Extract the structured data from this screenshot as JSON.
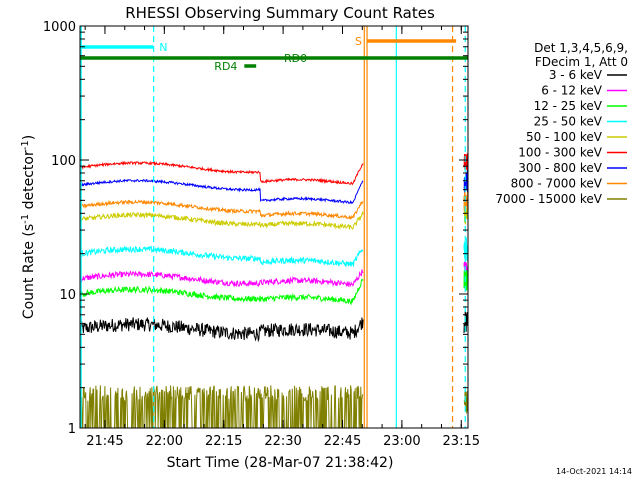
{
  "chart_data": {
    "type": "line",
    "title": "RHESSI Observing Summary Count Rates",
    "xlabel": "Start Time (28-Mar-07 21:38:42)",
    "ylabel_main": "Count Rate (s",
    "ylabel_sup1": "-1",
    "ylabel_mid": " detector",
    "ylabel_sup2": "-1",
    "ylabel_end": ")",
    "ylog": true,
    "ylim": [
      1,
      1000
    ],
    "xlim_minutes": [
      0,
      98
    ],
    "yticks": [
      {
        "value": 1,
        "label": "1"
      },
      {
        "value": 10,
        "label": "10"
      },
      {
        "value": 100,
        "label": "100"
      },
      {
        "value": 1000,
        "label": "1000"
      }
    ],
    "xticks": [
      {
        "t": 6.3,
        "label": "21:45"
      },
      {
        "t": 21.3,
        "label": "22:00"
      },
      {
        "t": 36.3,
        "label": "22:15"
      },
      {
        "t": 51.3,
        "label": "22:30"
      },
      {
        "t": 66.3,
        "label": "22:45"
      },
      {
        "t": 81.3,
        "label": "23:00"
      },
      {
        "t": 96.3,
        "label": "23:15"
      }
    ],
    "legend_header": [
      "Det 1,3,4,5,6,9,",
      "FDecim 1, Att 0"
    ],
    "legend_position": "right",
    "series": [
      {
        "name": "3 - 6 keV",
        "color": "#000000",
        "base": 5.5,
        "noise": 0.12,
        "seg2": 5.2,
        "end": 6.3
      },
      {
        "name": "6 - 12 keV",
        "color": "#ff00ff",
        "base": 13,
        "noise": 0.05,
        "seg2": 12,
        "end": 15
      },
      {
        "name": "12 - 25 keV",
        "color": "#00ff00",
        "base": 10,
        "noise": 0.05,
        "seg2": 9,
        "end": 13
      },
      {
        "name": "25 - 50 keV",
        "color": "#00ffff",
        "base": 20,
        "noise": 0.05,
        "seg2": 17,
        "end": 22
      },
      {
        "name": "50 - 100 keV",
        "color": "#cccc00",
        "base": 36,
        "noise": 0.04,
        "seg2": 32,
        "end": 40
      },
      {
        "name": "100 - 300 keV",
        "color": "#ff0000",
        "base": 88,
        "noise": 0.02,
        "seg2": 68,
        "end": 95
      },
      {
        "name": "300 - 800 keV",
        "color": "#0000ff",
        "base": 65,
        "noise": 0.02,
        "seg2": 49,
        "end": 70
      },
      {
        "name": "800 - 7000 keV",
        "color": "#ff8800",
        "base": 45,
        "noise": 0.03,
        "seg2": 38,
        "end": 50
      },
      {
        "name": "7000 - 15000 keV",
        "color": "#808000",
        "base": 1.6,
        "noise": 0.3,
        "seg2": 1.6,
        "end": 1.6
      }
    ],
    "gap_minutes": [
      71.5,
      97.0
    ],
    "data_end": 98,
    "step_at": 45.5,
    "flags": [
      {
        "label": "N",
        "color": "#00ffff",
        "start": 0,
        "end": 18.5,
        "y": 47
      },
      {
        "label": "S",
        "color": "#ff8800",
        "start": 72.5,
        "end": 95,
        "y": 41
      },
      {
        "label": "RD0",
        "color": "#008000",
        "start": 0,
        "end": 98,
        "y": 58
      },
      {
        "label": "RD4",
        "color": "#008000",
        "start": 41.5,
        "end": 44.5,
        "y": 66
      }
    ],
    "vlines": [
      {
        "t": 0.3,
        "color": "#00ffff",
        "style": "solid"
      },
      {
        "t": 18.6,
        "color": "#00ffff",
        "style": "dashed"
      },
      {
        "t": 71.8,
        "color": "#ff8800",
        "style": "solid"
      },
      {
        "t": 72.5,
        "color": "#ff8800",
        "style": "solid"
      },
      {
        "t": 79.9,
        "color": "#00ffff",
        "style": "solid"
      },
      {
        "t": 94.1,
        "color": "#ff8800",
        "style": "dashed"
      },
      {
        "t": 97.3,
        "color": "#00ffff",
        "style": "dashed"
      }
    ],
    "date_stamp": "14-Oct-2021 14:14"
  }
}
